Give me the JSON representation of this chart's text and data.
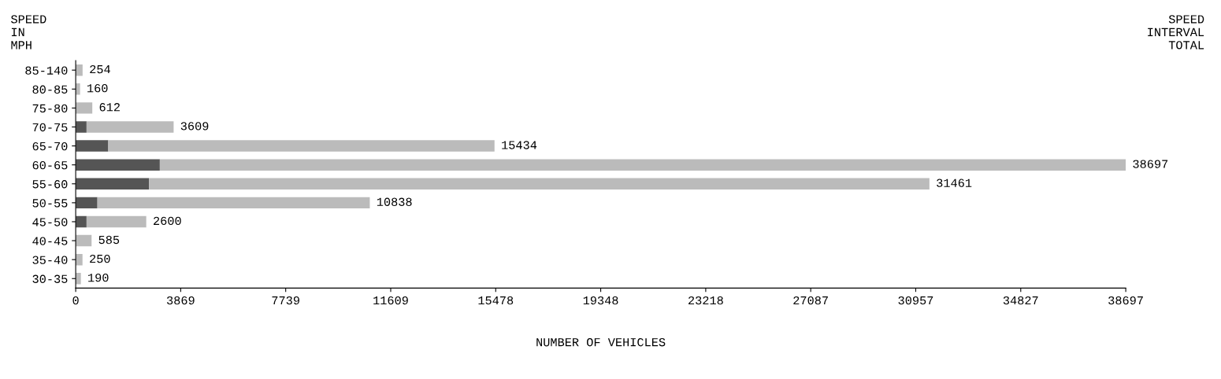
{
  "chart_data": {
    "type": "bar",
    "orientation": "horizontal",
    "stacked": true,
    "ylabel": "SPEED\nIN\nMPH",
    "xlabel": "NUMBER OF VEHICLES",
    "annotations": [
      "SPEED\nINTERVAL\nTOTAL"
    ],
    "categories": [
      "85-140",
      "80-85",
      "75-80",
      "70-75",
      "65-70",
      "60-65",
      "55-60",
      "50-55",
      "45-50",
      "40-45",
      "35-40",
      "30-35"
    ],
    "series": [
      {
        "color": "#555555",
        "values": [
          0,
          0,
          0,
          400,
          1200,
          3100,
          2700,
          800,
          400,
          0,
          0,
          0
        ]
      },
      {
        "color": "#bbbbbb",
        "values": [
          254,
          160,
          612,
          3209,
          14234,
          35597,
          28761,
          10038,
          2200,
          585,
          250,
          190
        ]
      }
    ],
    "totals": [
      "254",
      "160",
      "612",
      "3609",
      "15434",
      "38697",
      "31461",
      "10838",
      "2600",
      "585",
      "250",
      "190"
    ],
    "xlim": [
      0,
      38697
    ],
    "xticks": [
      0,
      3869,
      7739,
      11609,
      15478,
      19348,
      23218,
      27087,
      30957,
      34827,
      38697
    ],
    "grid": false,
    "legend": false
  }
}
